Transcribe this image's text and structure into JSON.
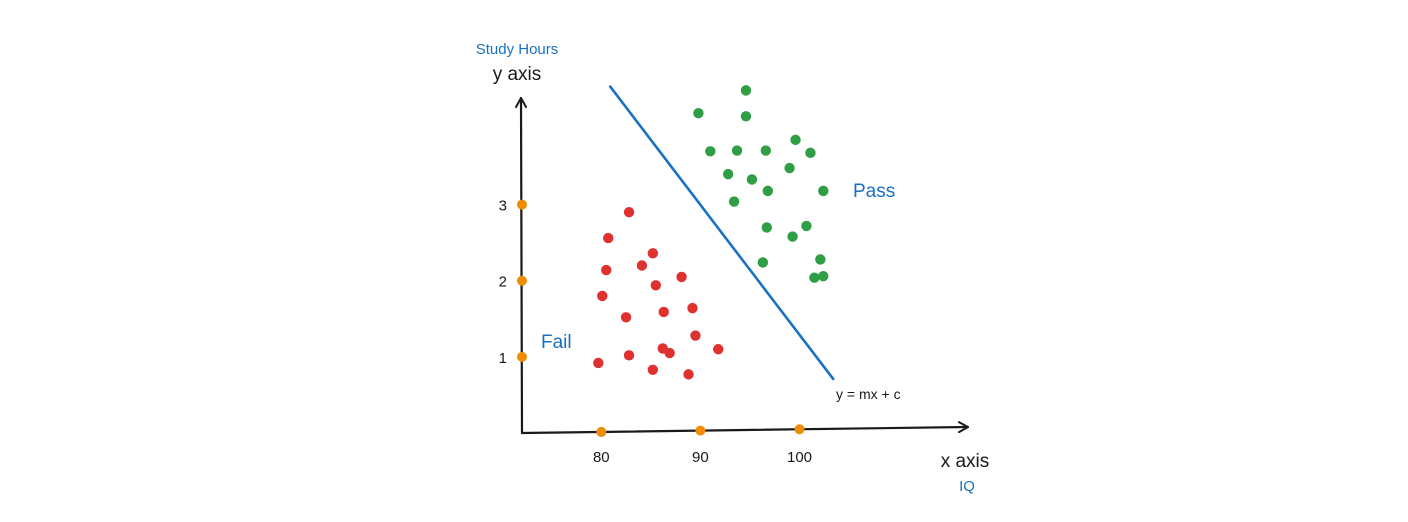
{
  "chart_data": {
    "type": "scatter",
    "title": "",
    "xlabel": "x axis",
    "xlabel_sub": "IQ",
    "ylabel": "y axis",
    "ylabel_sub": "Study Hours",
    "xlim": [
      72,
      117
    ],
    "ylim": [
      0,
      4.4
    ],
    "x_ticks": [
      80,
      90,
      100
    ],
    "x_tick_labels": [
      "80",
      "90",
      "100"
    ],
    "y_ticks": [
      1,
      2,
      3
    ],
    "y_tick_labels": [
      "1",
      "2",
      "3"
    ],
    "series": [
      {
        "name": "Fail",
        "color": "#e03131",
        "points": [
          [
            82.8,
            2.9
          ],
          [
            80.7,
            2.56
          ],
          [
            85.2,
            2.36
          ],
          [
            84.1,
            2.2
          ],
          [
            80.5,
            2.14
          ],
          [
            88.1,
            2.05
          ],
          [
            85.5,
            1.94
          ],
          [
            80.1,
            1.8
          ],
          [
            89.2,
            1.64
          ],
          [
            86.3,
            1.59
          ],
          [
            82.5,
            1.52
          ],
          [
            89.5,
            1.28
          ],
          [
            86.2,
            1.11
          ],
          [
            86.9,
            1.05
          ],
          [
            82.8,
            1.02
          ],
          [
            91.8,
            1.1
          ],
          [
            79.7,
            0.92
          ],
          [
            85.2,
            0.83
          ],
          [
            88.8,
            0.77
          ]
        ]
      },
      {
        "name": "Pass",
        "color": "#2f9e44",
        "points": [
          [
            94.6,
            4.5
          ],
          [
            94.6,
            4.16
          ],
          [
            89.8,
            4.2
          ],
          [
            91.0,
            3.7
          ],
          [
            93.7,
            3.71
          ],
          [
            96.6,
            3.71
          ],
          [
            99.6,
            3.85
          ],
          [
            101.1,
            3.68
          ],
          [
            92.8,
            3.4
          ],
          [
            95.2,
            3.33
          ],
          [
            99.0,
            3.48
          ],
          [
            96.8,
            3.18
          ],
          [
            102.4,
            3.18
          ],
          [
            93.4,
            3.04
          ],
          [
            96.7,
            2.7
          ],
          [
            100.7,
            2.72
          ],
          [
            99.3,
            2.58
          ],
          [
            102.1,
            2.28
          ],
          [
            96.3,
            2.24
          ],
          [
            101.5,
            2.04
          ],
          [
            102.4,
            2.06
          ]
        ]
      }
    ],
    "decision_boundary": {
      "label": "y = mx + c",
      "color": "#1971c2",
      "points": [
        [
          80.9,
          4.55
        ],
        [
          103.4,
          0.71
        ]
      ]
    },
    "axis_markers": {
      "color": "#f08c00",
      "x": [
        80,
        90,
        100
      ],
      "y": [
        1,
        2,
        3
      ]
    },
    "annotations": [
      {
        "text": "Pass",
        "x": 106.8,
        "y": 3.55,
        "color": "#1971c2"
      },
      {
        "text": "Fail",
        "x": 75.0,
        "y": 1.25,
        "color": "#1971c2"
      }
    ],
    "accent_color": "#1971c2",
    "grid": false
  }
}
